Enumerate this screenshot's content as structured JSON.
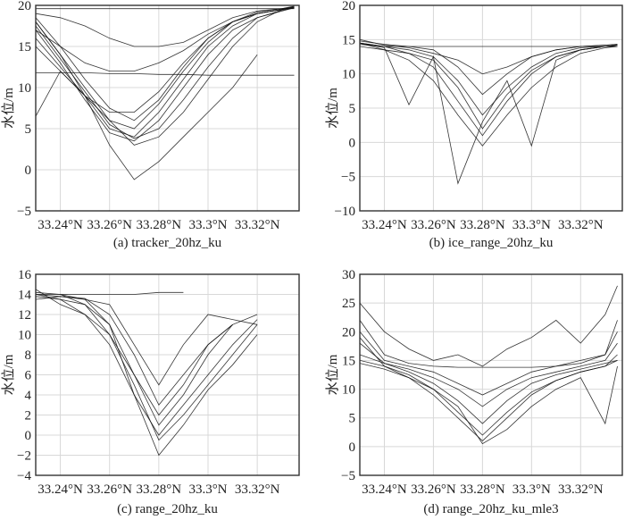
{
  "chart_data": [
    {
      "type": "line",
      "title": "(a) tracker_20hz_ku",
      "xlabel": "",
      "ylabel": "水位/m",
      "xlim": [
        33.23,
        33.337
      ],
      "ylim": [
        -5,
        20
      ],
      "xticks": [
        33.24,
        33.26,
        33.28,
        33.3,
        33.32
      ],
      "xtick_labels": [
        "33.24°N",
        "33.26°N",
        "33.28°N",
        "33.3°N",
        "33.32°N"
      ],
      "yticks": [
        -5,
        0,
        5,
        10,
        15,
        20
      ],
      "ytick_labels": [
        "−5",
        "0",
        "5",
        "10",
        "15",
        "20"
      ],
      "grid": true,
      "x": [
        33.23,
        33.24,
        33.25,
        33.26,
        33.27,
        33.28,
        33.29,
        33.3,
        33.31,
        33.32,
        33.33,
        33.335
      ],
      "series": [
        {
          "values": [
            18,
            14,
            9,
            5,
            4,
            7,
            11,
            15,
            17.5,
            19,
            19.5,
            19.8
          ]
        },
        {
          "values": [
            17,
            13,
            8.5,
            4.5,
            3.5,
            6,
            10,
            14,
            17,
            18.5,
            19.3,
            19.7
          ]
        },
        {
          "values": [
            16,
            12.5,
            9,
            6,
            5,
            8,
            12,
            15.5,
            18,
            19,
            19.5,
            19.8
          ]
        },
        {
          "values": [
            18.5,
            15,
            11,
            7.5,
            6,
            8.5,
            12.5,
            16,
            18,
            19.2,
            19.6,
            19.9
          ]
        },
        {
          "values": [
            15,
            12,
            9,
            7,
            7,
            9.5,
            13,
            16,
            18,
            19,
            19.5,
            19.7
          ]
        },
        {
          "values": [
            17,
            15,
            13,
            12,
            12,
            13,
            14.5,
            16.5,
            18,
            19,
            19.5,
            19.8
          ]
        },
        {
          "values": [
            19,
            18.5,
            17.5,
            16,
            15,
            15,
            15.5,
            17,
            18.5,
            19.3,
            19.6,
            19.8
          ]
        },
        {
          "values": [
            11.8,
            11.8,
            11.8,
            11.7,
            11.7,
            11.6,
            11.6,
            11.5,
            11.5,
            11.5,
            11.5,
            11.5
          ]
        },
        {
          "values": [
            19.6,
            19.6,
            19.6,
            19.6,
            19.6,
            19.6,
            19.6,
            19.6,
            19.6,
            19.6,
            19.6,
            19.6
          ]
        },
        {
          "values": [
            6.5,
            12,
            9,
            3,
            -1.2,
            1,
            4,
            7,
            10,
            14,
            null,
            null
          ]
        },
        {
          "values": [
            18,
            14,
            10,
            6,
            3,
            4,
            7,
            11,
            15,
            18,
            19.5,
            19.8
          ]
        },
        {
          "values": [
            17.5,
            13.5,
            9.5,
            5.5,
            3.8,
            5,
            8.5,
            12.5,
            16,
            18.5,
            19.4,
            19.7
          ]
        }
      ]
    },
    {
      "type": "line",
      "title": "(b) ice_range_20hz_ku",
      "xlabel": "",
      "ylabel": "水位/m",
      "xlim": [
        33.23,
        33.337
      ],
      "ylim": [
        -10,
        20
      ],
      "xticks": [
        33.24,
        33.26,
        33.28,
        33.3,
        33.32
      ],
      "xtick_labels": [
        "33.24°N",
        "33.26°N",
        "33.28°N",
        "33.3°N",
        "33.32°N"
      ],
      "yticks": [
        -10,
        -5,
        0,
        5,
        10,
        15,
        20
      ],
      "ytick_labels": [
        "−10",
        "−5",
        "0",
        "5",
        "10",
        "15",
        "20"
      ],
      "grid": true,
      "x": [
        33.23,
        33.24,
        33.25,
        33.26,
        33.27,
        33.28,
        33.29,
        33.3,
        33.31,
        33.32,
        33.33,
        33.335
      ],
      "series": [
        {
          "values": [
            14.5,
            14,
            13,
            11,
            6,
            1,
            6,
            10,
            12.5,
            13.5,
            14,
            14
          ]
        },
        {
          "values": [
            14.5,
            14,
            13.5,
            12.5,
            9,
            4,
            8,
            11,
            13,
            13.8,
            14,
            14.2
          ]
        },
        {
          "values": [
            14.8,
            14.3,
            14,
            13.5,
            11,
            7,
            10,
            12.5,
            13.5,
            14,
            14.2,
            14.3
          ]
        },
        {
          "values": [
            14.3,
            14,
            14,
            14,
            14,
            14,
            14,
            14,
            14,
            14,
            14,
            14
          ]
        },
        {
          "values": [
            14.5,
            13.5,
            12,
            9,
            4,
            -0.5,
            4,
            8,
            11,
            13,
            13.8,
            14
          ]
        },
        {
          "values": [
            15,
            14.2,
            13.8,
            13,
            12,
            10,
            11,
            12.5,
            13.5,
            14,
            14.2,
            14.3
          ]
        },
        {
          "values": [
            14,
            13.5,
            13,
            12,
            8,
            2,
            7,
            10.5,
            12.5,
            13.5,
            14,
            14.2
          ]
        },
        {
          "values": [
            14.5,
            13.8,
            5.5,
            12.5,
            -6,
            3,
            9,
            -0.5,
            12,
            13.5,
            14,
            14.2
          ]
        }
      ]
    },
    {
      "type": "line",
      "title": "(c) range_20hz_ku",
      "xlabel": "",
      "ylabel": "水位/m",
      "xlim": [
        33.23,
        33.337
      ],
      "ylim": [
        -4,
        16
      ],
      "xticks": [
        33.24,
        33.26,
        33.28,
        33.3,
        33.32
      ],
      "xtick_labels": [
        "33.24°N",
        "33.26°N",
        "33.28°N",
        "33.3°N",
        "33.32°N"
      ],
      "yticks": [
        -4,
        -2,
        0,
        2,
        4,
        6,
        8,
        10,
        12,
        14,
        16
      ],
      "ytick_labels": [
        "−4",
        "−2",
        "0",
        "2",
        "4",
        "6",
        "8",
        "10",
        "12",
        "14",
        "16"
      ],
      "grid": true,
      "x": [
        33.23,
        33.24,
        33.25,
        33.26,
        33.27,
        33.28,
        33.29,
        33.3,
        33.31,
        33.32
      ],
      "series": [
        {
          "values": [
            14.2,
            14,
            13.5,
            11,
            6,
            1,
            4,
            8,
            11,
            12
          ]
        },
        {
          "values": [
            14,
            13.8,
            13.6,
            12,
            8,
            3,
            6,
            9,
            11,
            null
          ]
        },
        {
          "values": [
            13.8,
            13.5,
            12,
            9,
            4,
            0,
            3,
            6,
            9,
            11.5
          ]
        },
        {
          "values": [
            14,
            14,
            14,
            14,
            14,
            14.2,
            14.2,
            null,
            null,
            null
          ]
        },
        {
          "values": [
            14,
            13.5,
            13,
            10,
            6,
            2,
            5,
            9,
            11,
            null
          ]
        },
        {
          "values": [
            13.5,
            13.8,
            13.5,
            13,
            9,
            5,
            9,
            12,
            11.5,
            11
          ]
        },
        {
          "values": [
            14.5,
            13,
            12,
            10,
            5,
            -0.5,
            2,
            5,
            8,
            11
          ]
        },
        {
          "values": [
            null,
            14,
            13,
            11,
            4,
            -2,
            1,
            4.5,
            7,
            10
          ]
        }
      ]
    },
    {
      "type": "line",
      "title": "(d) range_20hz_ku_mle3",
      "xlabel": "",
      "ylabel": "水位/m",
      "xlim": [
        33.23,
        33.337
      ],
      "ylim": [
        -5,
        30
      ],
      "xticks": [
        33.24,
        33.26,
        33.28,
        33.3,
        33.32
      ],
      "xtick_labels": [
        "33.24°N",
        "33.26°N",
        "33.28°N",
        "33.3°N",
        "33.32°N"
      ],
      "yticks": [
        -5,
        0,
        5,
        10,
        15,
        20,
        25,
        30
      ],
      "ytick_labels": [
        "−5",
        "0",
        "5",
        "10",
        "15",
        "20",
        "25",
        "30"
      ],
      "grid": true,
      "x": [
        33.23,
        33.24,
        33.25,
        33.26,
        33.27,
        33.28,
        33.29,
        33.3,
        33.31,
        33.32,
        33.33,
        33.335
      ],
      "series": [
        {
          "values": [
            15,
            14,
            12.5,
            10,
            6,
            2,
            6,
            9.5,
            11.5,
            13,
            14,
            16
          ]
        },
        {
          "values": [
            16,
            14.5,
            13,
            11,
            8,
            4,
            8,
            11,
            12.5,
            13.5,
            14.5,
            15
          ]
        },
        {
          "values": [
            18,
            14.5,
            13.5,
            12,
            10,
            7,
            10,
            12,
            13,
            14,
            15,
            18
          ]
        },
        {
          "values": [
            22,
            16,
            14.5,
            14,
            13.8,
            13.8,
            13.8,
            13.8,
            14,
            14.5,
            16,
            22
          ]
        },
        {
          "values": [
            14.5,
            13.5,
            12,
            9,
            5,
            1,
            5,
            9,
            11.5,
            13,
            14,
            15
          ]
        },
        {
          "values": [
            25,
            20,
            17,
            15,
            16,
            14,
            17,
            19,
            22,
            18,
            23,
            28
          ]
        },
        {
          "values": [
            20,
            15,
            14,
            13,
            11,
            9,
            11,
            13,
            14,
            15,
            16,
            20
          ]
        },
        {
          "values": [
            19,
            14,
            12,
            10,
            7,
            0.5,
            3,
            7,
            10,
            12,
            4,
            14
          ]
        }
      ]
    }
  ]
}
